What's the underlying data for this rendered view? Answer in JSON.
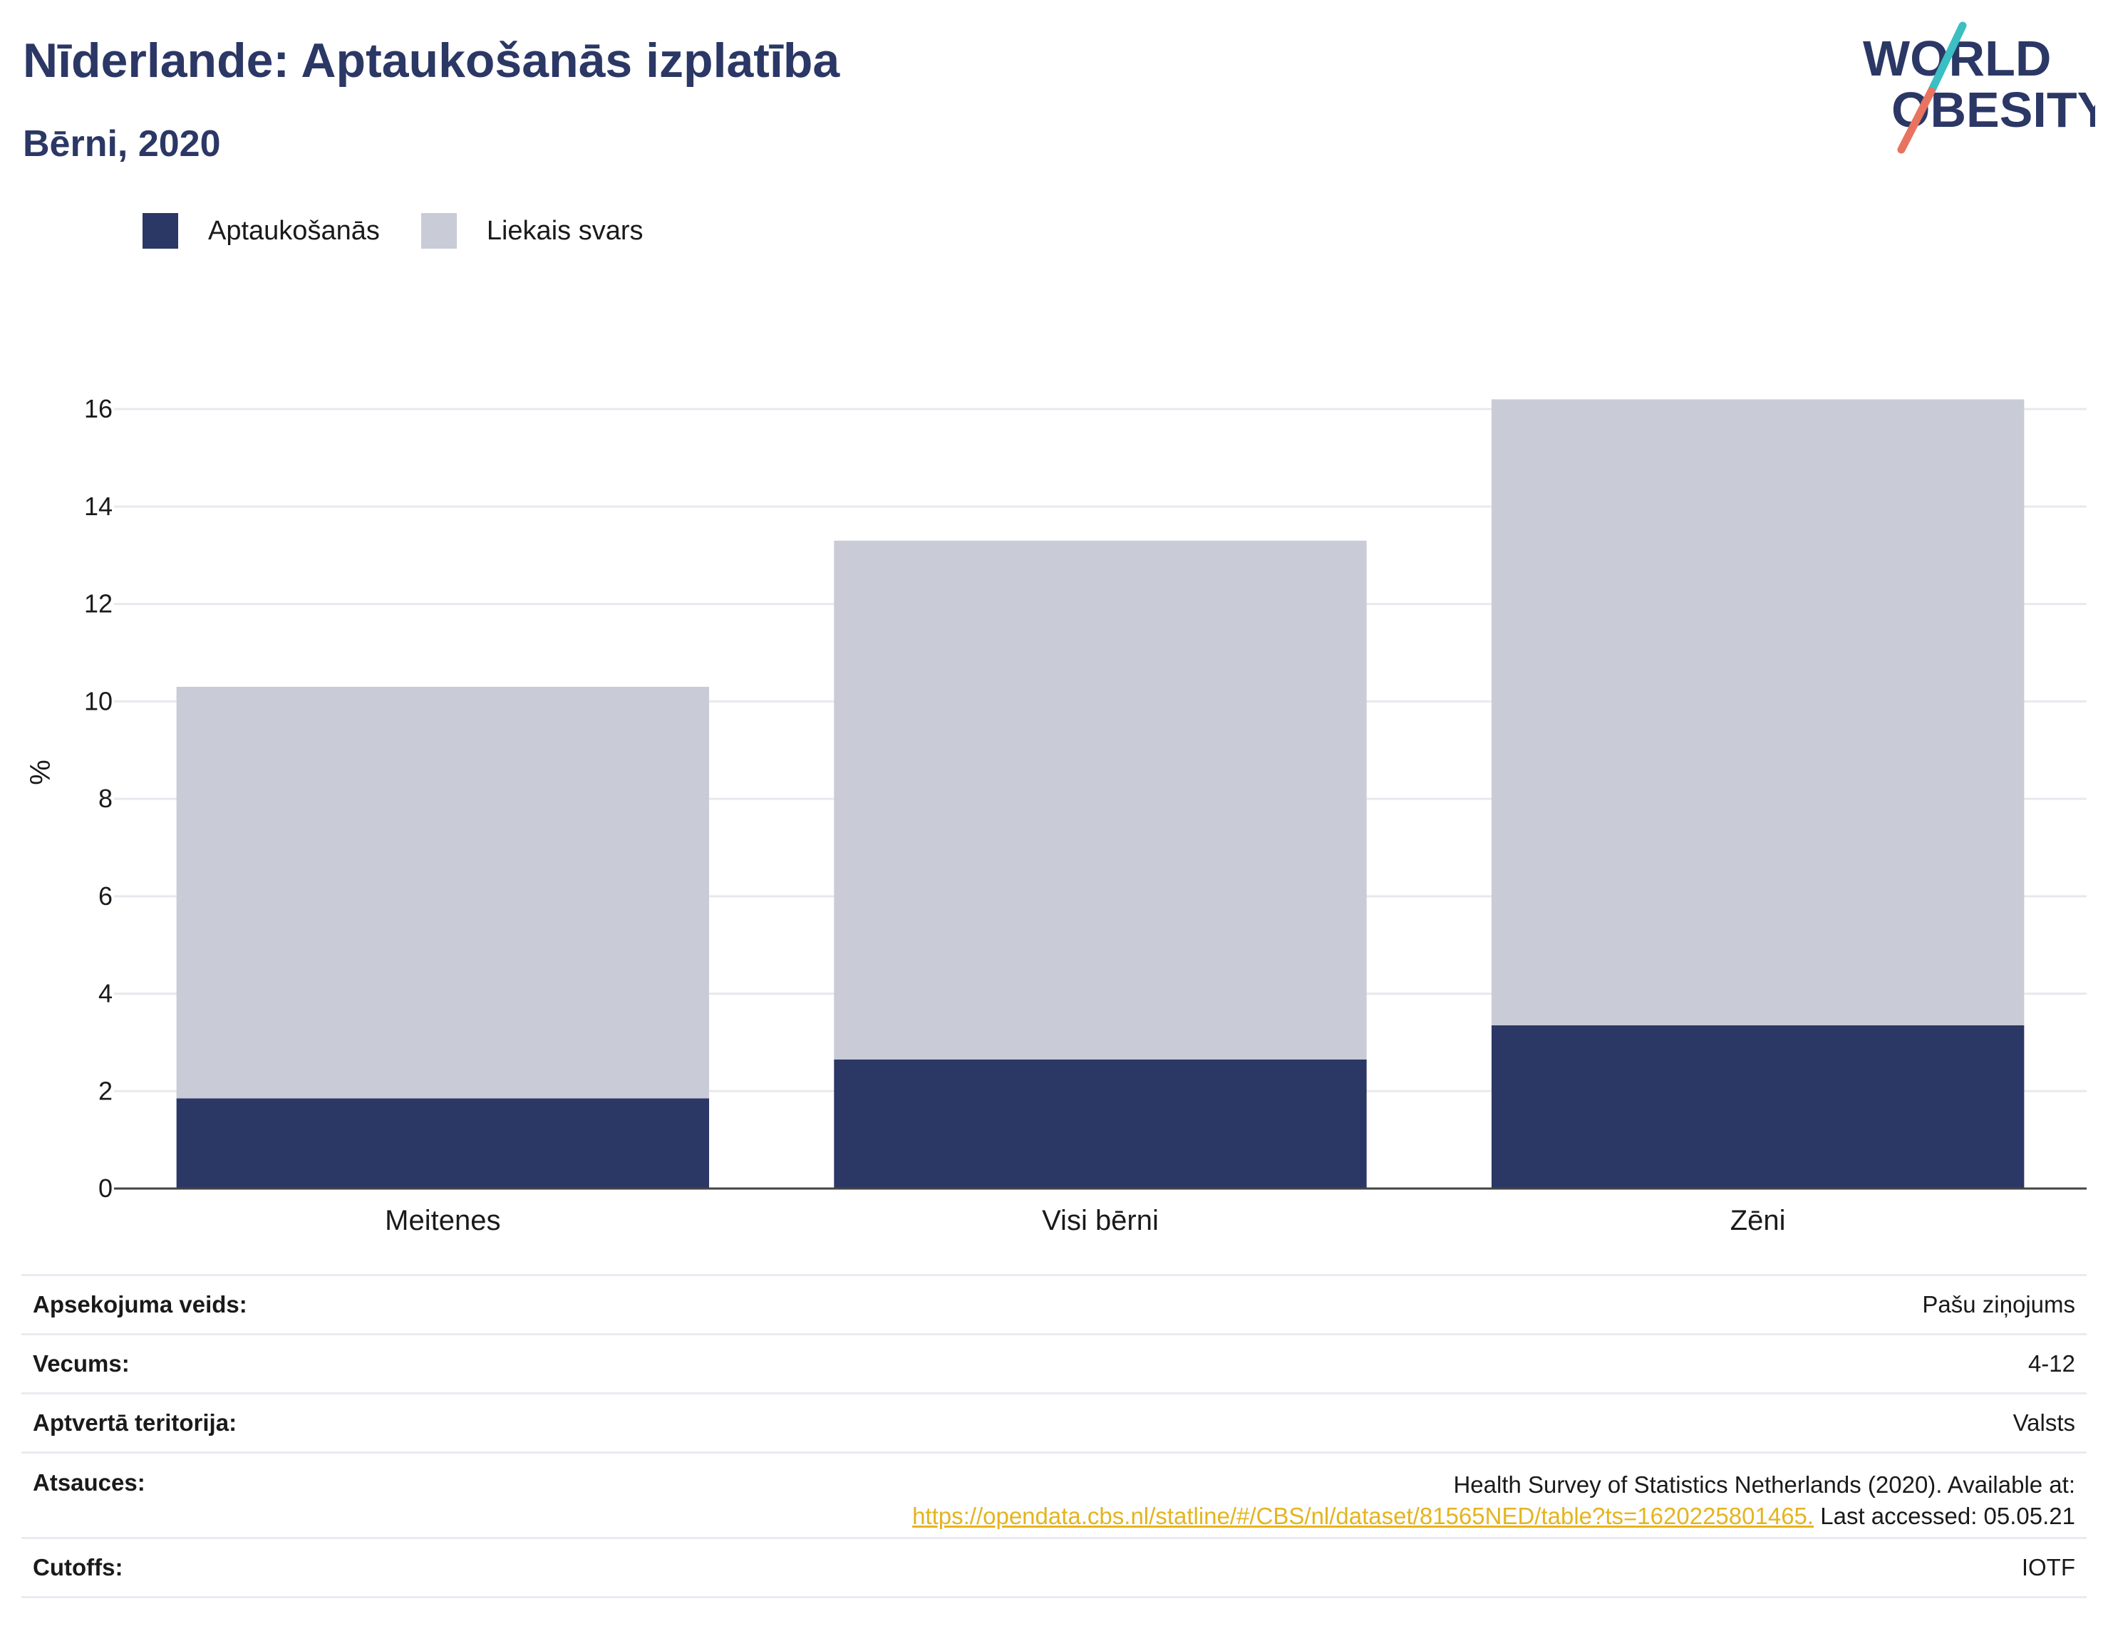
{
  "header": {
    "title": "Nīderlande: Aptaukošanās izplatība",
    "subtitle": "Bērni, 2020"
  },
  "logo": {
    "line1": "WORLD",
    "line2": "OBESITY",
    "accent_teal": "#3bbfc2",
    "accent_coral": "#e8735f",
    "text_color": "#2b3765"
  },
  "colors": {
    "obesity": "#2b3765",
    "overweight": "#c9cbd6"
  },
  "chart_data": {
    "type": "bar",
    "stacked": true,
    "categories": [
      "Meitenes",
      "Visi bērni",
      "Zēni"
    ],
    "series": [
      {
        "name": "Aptaukošanās",
        "values": [
          1.85,
          2.65,
          3.35
        ]
      },
      {
        "name": "Liekais svars",
        "values": [
          8.45,
          10.65,
          12.85
        ]
      }
    ],
    "ylabel": "%",
    "ylim": [
      0,
      16.5
    ],
    "yticks": [
      0,
      2,
      4,
      6,
      8,
      10,
      12,
      14,
      16
    ],
    "grid": true,
    "legend": "top-left"
  },
  "info": {
    "rows": [
      {
        "label": "Apsekojuma veids:",
        "value": "Pašu ziņojums"
      },
      {
        "label": "Vecums:",
        "value": "4-12"
      },
      {
        "label": "Aptvertā teritorija:",
        "value": "Valsts"
      },
      {
        "label": "Atsauces:",
        "value_line1": "Health Survey of Statistics Netherlands (2020). Available at:",
        "link": "https://opendata.cbs.nl/statline/#/CBS/nl/dataset/81565NED/table?ts=1620225801465.",
        "value_after_link": " Last accessed: 05.05.21"
      },
      {
        "label": "Cutoffs:",
        "value": "IOTF"
      }
    ]
  }
}
